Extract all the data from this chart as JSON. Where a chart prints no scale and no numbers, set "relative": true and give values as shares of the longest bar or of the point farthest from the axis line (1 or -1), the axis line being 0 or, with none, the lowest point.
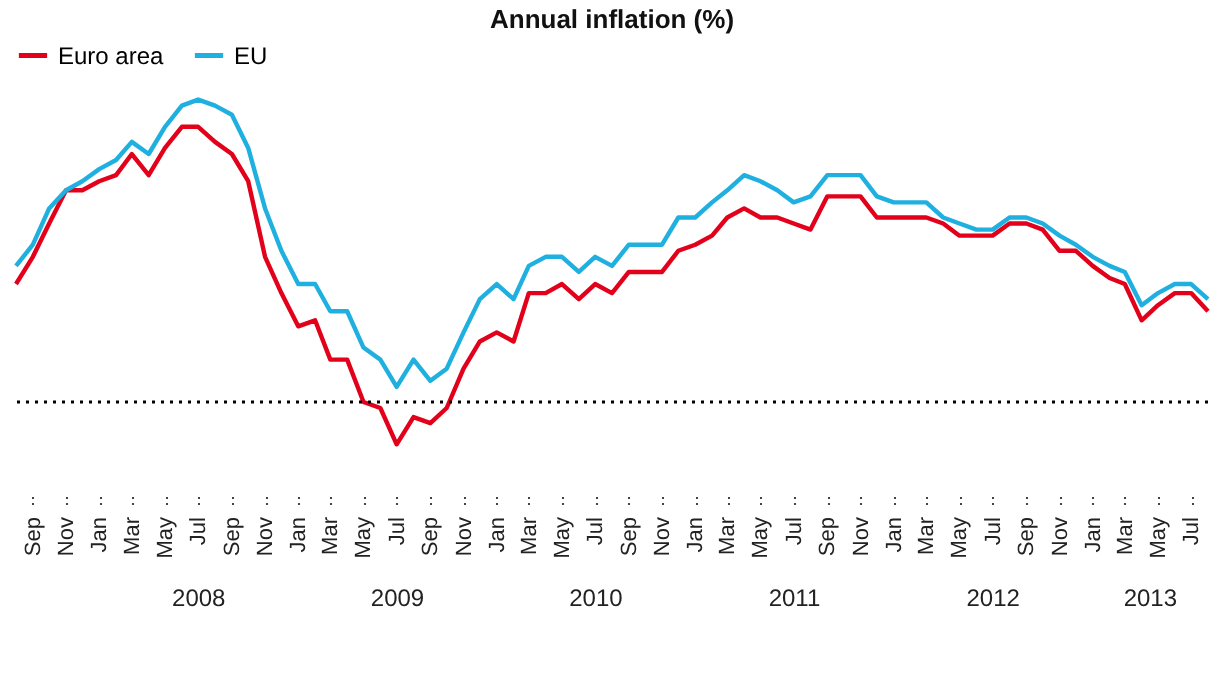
{
  "chart_data": {
    "type": "line",
    "title": "Annual inflation (%)",
    "relative": true,
    "legend": "top",
    "line_style": "solid",
    "x": [
      "2007-08",
      "2007-09",
      "2007-10",
      "2007-11",
      "2007-12",
      "2008-01",
      "2008-02",
      "2008-03",
      "2008-04",
      "2008-05",
      "2008-06",
      "2008-07",
      "2008-08",
      "2008-09",
      "2008-10",
      "2008-11",
      "2008-12",
      "2009-01",
      "2009-02",
      "2009-03",
      "2009-04",
      "2009-05",
      "2009-06",
      "2009-07",
      "2009-08",
      "2009-09",
      "2009-10",
      "2009-11",
      "2009-12",
      "2010-01",
      "2010-02",
      "2010-03",
      "2010-04",
      "2010-05",
      "2010-06",
      "2010-07",
      "2010-08",
      "2010-09",
      "2010-10",
      "2010-11",
      "2010-12",
      "2011-01",
      "2011-02",
      "2011-03",
      "2011-04",
      "2011-05",
      "2011-06",
      "2011-07",
      "2011-08",
      "2011-09",
      "2011-10",
      "2011-11",
      "2011-12",
      "2012-01",
      "2012-02",
      "2012-03",
      "2012-04",
      "2012-05",
      "2012-06",
      "2012-07",
      "2012-08",
      "2012-09",
      "2012-10",
      "2012-11",
      "2012-12",
      "2013-01",
      "2013-02",
      "2013-03",
      "2013-04",
      "2013-05",
      "2013-06",
      "2013-07",
      "2013-08"
    ],
    "xlim": [
      "2007-08",
      "2013-08"
    ],
    "xticks": [
      {
        "value": "2007-09",
        "label": "Sep"
      },
      {
        "value": "2007-11",
        "label": "Nov"
      },
      {
        "value": "2008-01",
        "label": "Jan"
      },
      {
        "value": "2008-03",
        "label": "Mar"
      },
      {
        "value": "2008-05",
        "label": "May"
      },
      {
        "value": "2008-07",
        "label": "Jul"
      },
      {
        "value": "2008-09",
        "label": "Sep"
      },
      {
        "value": "2008-11",
        "label": "Nov"
      },
      {
        "value": "2009-01",
        "label": "Jan"
      },
      {
        "value": "2009-03",
        "label": "Mar"
      },
      {
        "value": "2009-05",
        "label": "May"
      },
      {
        "value": "2009-07",
        "label": "Jul"
      },
      {
        "value": "2009-09",
        "label": "Sep"
      },
      {
        "value": "2009-11",
        "label": "Nov"
      },
      {
        "value": "2010-01",
        "label": "Jan"
      },
      {
        "value": "2010-03",
        "label": "Mar"
      },
      {
        "value": "2010-05",
        "label": "May"
      },
      {
        "value": "2010-07",
        "label": "Jul"
      },
      {
        "value": "2010-09",
        "label": "Sep"
      },
      {
        "value": "2010-11",
        "label": "Nov"
      },
      {
        "value": "2011-01",
        "label": "Jan"
      },
      {
        "value": "2011-03",
        "label": "Mar"
      },
      {
        "value": "2011-05",
        "label": "May"
      },
      {
        "value": "2011-07",
        "label": "Jul"
      },
      {
        "value": "2011-09",
        "label": "Sep"
      },
      {
        "value": "2011-11",
        "label": "Nov"
      },
      {
        "value": "2012-01",
        "label": "Jan"
      },
      {
        "value": "2012-03",
        "label": "Mar"
      },
      {
        "value": "2012-05",
        "label": "May"
      },
      {
        "value": "2012-07",
        "label": "Jul"
      },
      {
        "value": "2012-09",
        "label": "Sep"
      },
      {
        "value": "2012-11",
        "label": "Nov"
      },
      {
        "value": "2013-01",
        "label": "Jan"
      },
      {
        "value": "2013-03",
        "label": "Mar"
      },
      {
        "value": "2013-05",
        "label": "May"
      },
      {
        "value": "2013-07",
        "label": "Jul"
      }
    ],
    "annotations": [
      "2008",
      "2009",
      "2010",
      "2011",
      "2012",
      "2013"
    ],
    "ref_lines": [
      {
        "axis": "y",
        "value": 0,
        "color": "#000000",
        "line_style": "dotted"
      }
    ],
    "series": [
      {
        "name": "Euro area",
        "color": "#e2001a",
        "values": [
          0.39,
          0.48,
          0.59,
          0.7,
          0.7,
          0.73,
          0.75,
          0.82,
          0.75,
          0.84,
          0.91,
          0.91,
          0.86,
          0.82,
          0.73,
          0.48,
          0.36,
          0.25,
          0.27,
          0.14,
          0.14,
          0,
          -0.02,
          -0.14,
          -0.05,
          -0.07,
          -0.02,
          0.11,
          0.2,
          0.23,
          0.2,
          0.36,
          0.36,
          0.39,
          0.34,
          0.39,
          0.36,
          0.43,
          0.43,
          0.43,
          0.5,
          0.52,
          0.55,
          0.61,
          0.64,
          0.61,
          0.61,
          0.59,
          0.57,
          0.68,
          0.68,
          0.68,
          0.61,
          0.61,
          0.61,
          0.61,
          0.59,
          0.55,
          0.55,
          0.55,
          0.59,
          0.59,
          0.57,
          0.5,
          0.5,
          0.45,
          0.41,
          0.39,
          0.27,
          0.32,
          0.36,
          0.36,
          0.3
        ]
      },
      {
        "name": "EU",
        "color": "#1fb0e0",
        "values": [
          0.45,
          0.52,
          0.64,
          0.7,
          0.73,
          0.77,
          0.8,
          0.86,
          0.82,
          0.91,
          0.98,
          1,
          0.98,
          0.95,
          0.84,
          0.64,
          0.5,
          0.39,
          0.39,
          0.3,
          0.3,
          0.18,
          0.14,
          0.05,
          0.14,
          0.07,
          0.11,
          0.23,
          0.34,
          0.39,
          0.34,
          0.45,
          0.48,
          0.48,
          0.43,
          0.48,
          0.45,
          0.52,
          0.52,
          0.52,
          0.61,
          0.61,
          0.66,
          0.7,
          0.75,
          0.73,
          0.7,
          0.66,
          0.68,
          0.75,
          0.75,
          0.75,
          0.68,
          0.66,
          0.66,
          0.66,
          0.61,
          0.59,
          0.57,
          0.57,
          0.61,
          0.61,
          0.59,
          0.55,
          0.52,
          0.48,
          0.45,
          0.43,
          0.32,
          0.36,
          0.39,
          0.39,
          0.34
        ]
      }
    ]
  }
}
